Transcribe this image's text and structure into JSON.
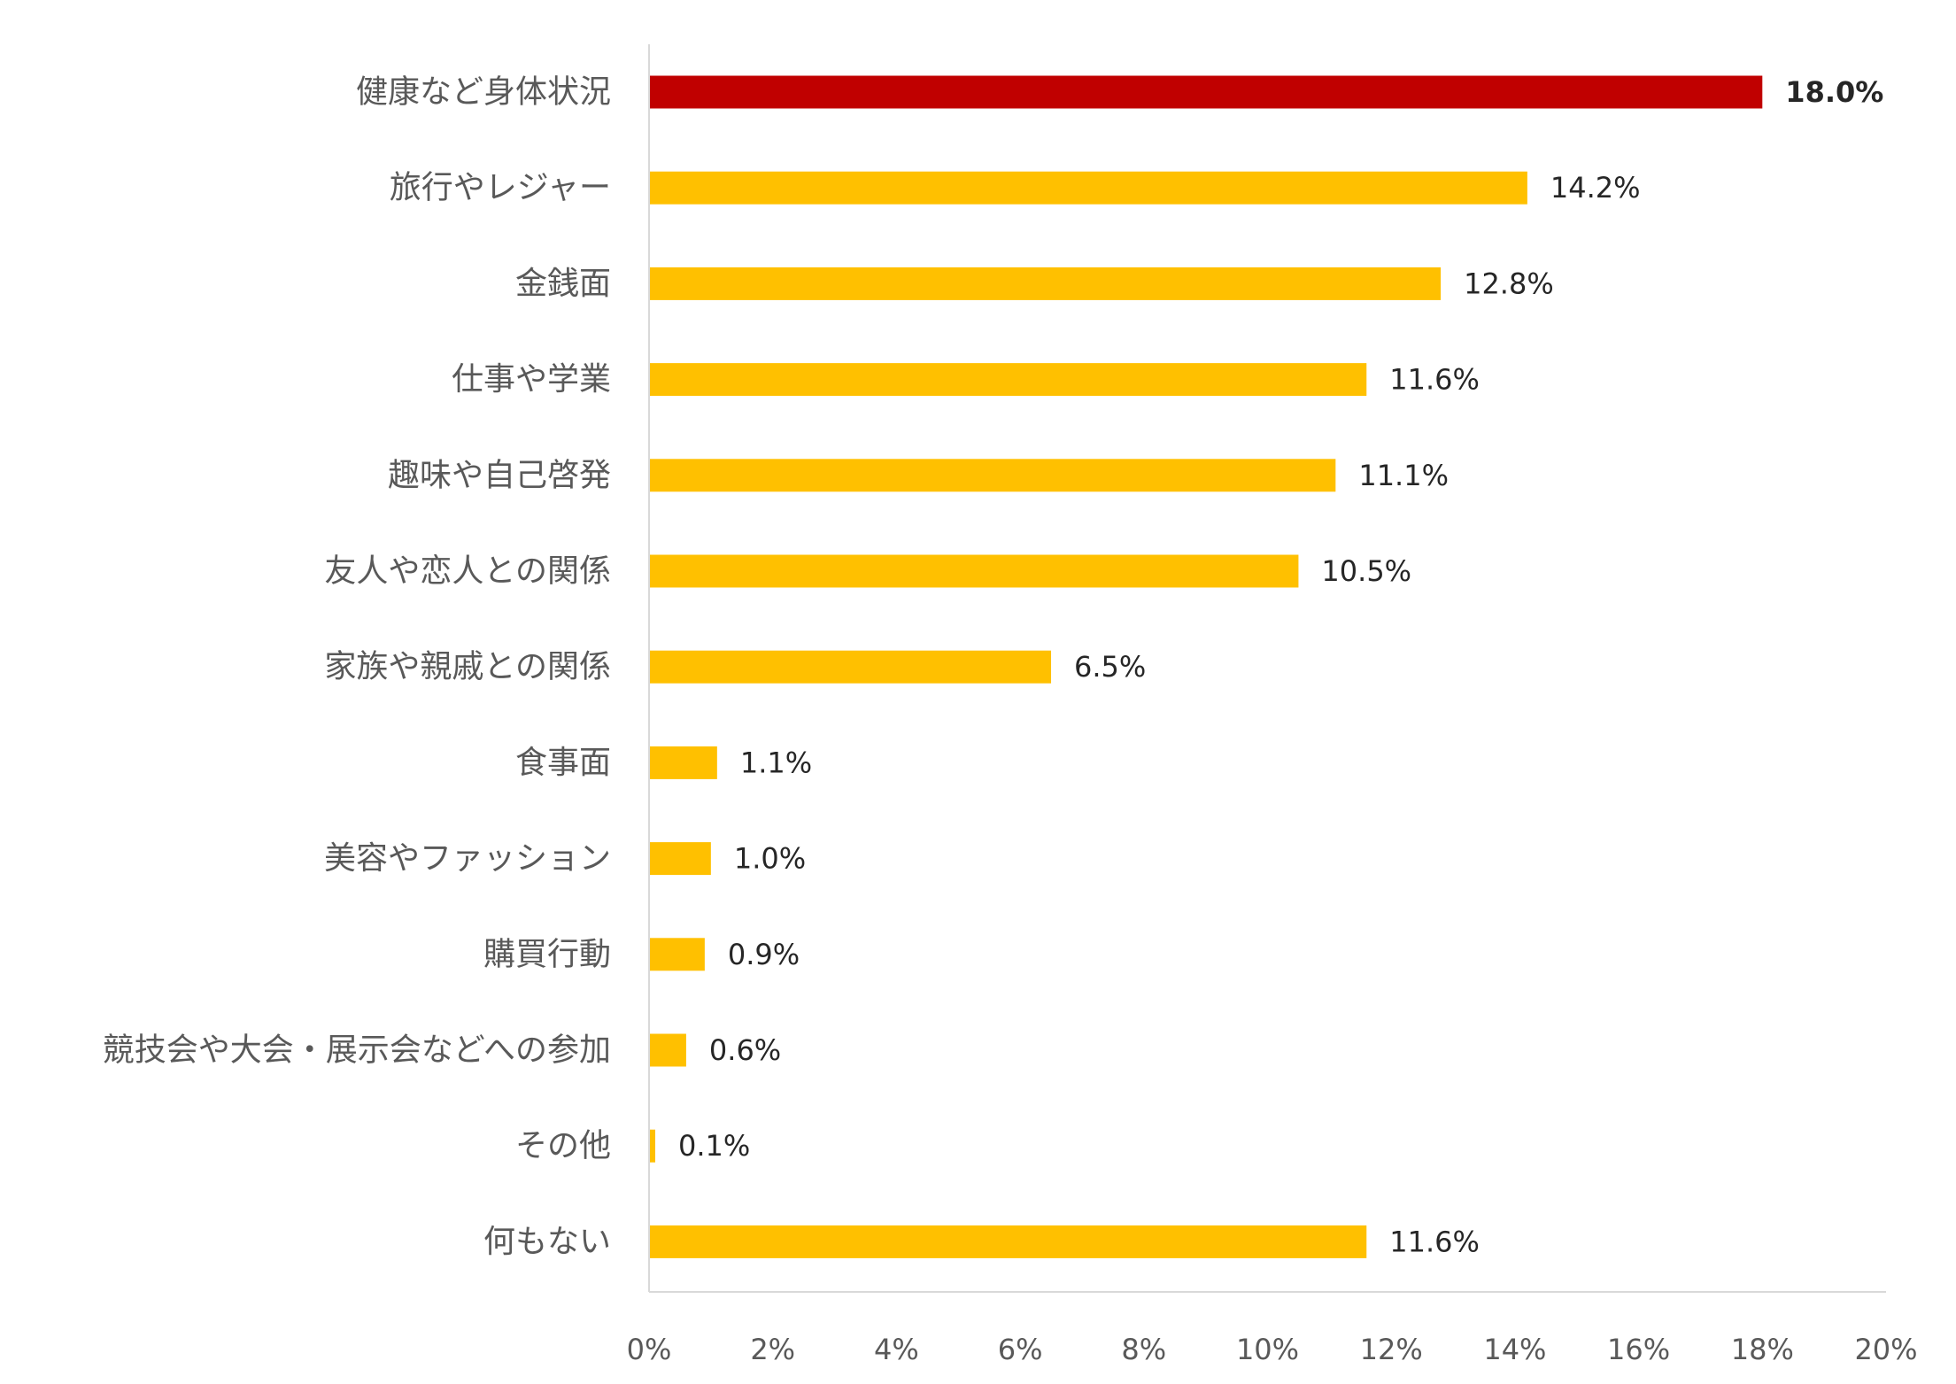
{
  "chart_data": {
    "type": "bar",
    "orientation": "horizontal",
    "title": "",
    "xlabel": "",
    "ylabel": "",
    "categories": [
      "健康など身体状況",
      "旅行やレジャー",
      "金銭面",
      "仕事や学業",
      "趣味や自己啓発",
      "友人や恋人との関係",
      "家族や親戚との関係",
      "食事面",
      "美容やファッション",
      "購買行動",
      "競技会や大会・展示会などへの参加",
      "その他",
      "何もない"
    ],
    "values": [
      18.0,
      14.2,
      12.8,
      11.6,
      11.1,
      10.5,
      6.5,
      1.1,
      1.0,
      0.9,
      0.6,
      0.1,
      11.6
    ],
    "value_labels": [
      "18.0%",
      "14.2%",
      "12.8%",
      "11.6%",
      "11.1%",
      "10.5%",
      "6.5%",
      "1.1%",
      "1.0%",
      "0.9%",
      "0.6%",
      "0.1%",
      "11.6%"
    ],
    "highlight_index": 0,
    "xlim": [
      0,
      20
    ],
    "x_ticks": [
      0,
      2,
      4,
      6,
      8,
      10,
      12,
      14,
      16,
      18,
      20
    ],
    "x_tick_labels": [
      "0%",
      "2%",
      "4%",
      "6%",
      "8%",
      "10%",
      "12%",
      "14%",
      "16%",
      "18%",
      "20%"
    ],
    "grid": false,
    "legend": "none",
    "colors": {
      "bar": "#FFC000",
      "highlight": "#C00000",
      "axis": "#D9D9D9",
      "category_text": "#595959",
      "value_text": "#262626",
      "tick_text": "#595959"
    }
  }
}
